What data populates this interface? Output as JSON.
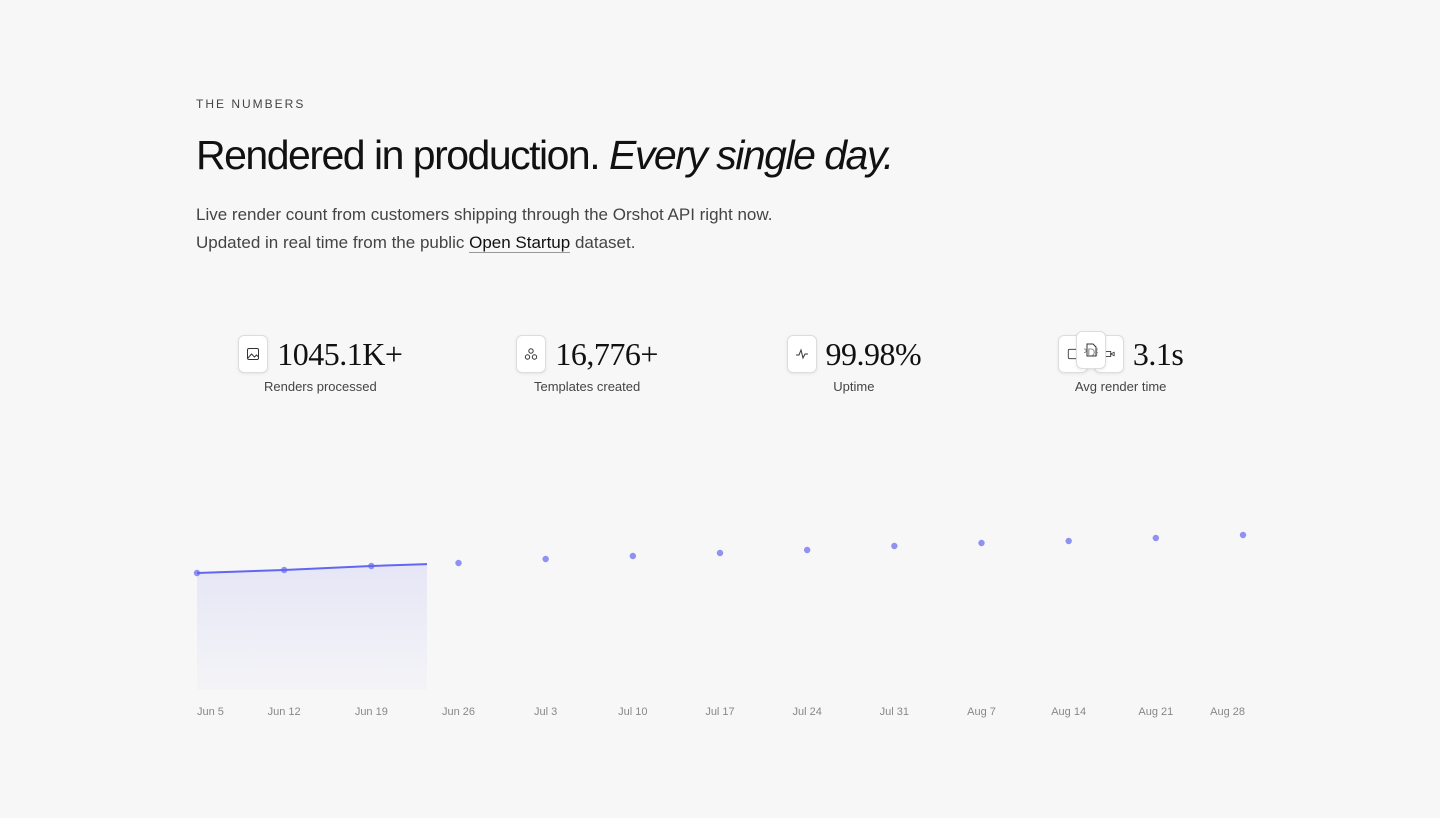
{
  "section": {
    "eyebrow": "THE NUMBERS",
    "title": "Rendered in production.",
    "title_emphasis": "Every single day.",
    "description": "Live render count from customers shipping through the Orshot API right now. Updated in real time from the public",
    "link": "Open Startup",
    "description_end": "dataset."
  },
  "stats": [
    {
      "value": "1045.1K+",
      "label": "Renders processed"
    },
    {
      "value": "16,776+",
      "label": "Templates created"
    },
    {
      "value": "99.98%",
      "label": "Uptime"
    },
    {
      "value": "3.1s",
      "label": "Avg render time"
    }
  ],
  "chart_data": {
    "type": "area",
    "categories": [
      "Jun 5",
      "Jun 12",
      "Jun 19",
      "Jun 26",
      "Jul 3",
      "Jul 10",
      "Jul 17",
      "Jul 24",
      "Jul 31",
      "Aug 7",
      "Aug 14",
      "Aug 21",
      "Aug 28"
    ],
    "values": [
      46.8,
      48,
      49.6,
      50.8,
      52.4,
      53.6,
      54.8,
      56,
      57.6,
      58.8,
      59.6,
      60.8,
      62
    ],
    "ylim": [
      0,
      100
    ],
    "color": "#6366f1"
  }
}
